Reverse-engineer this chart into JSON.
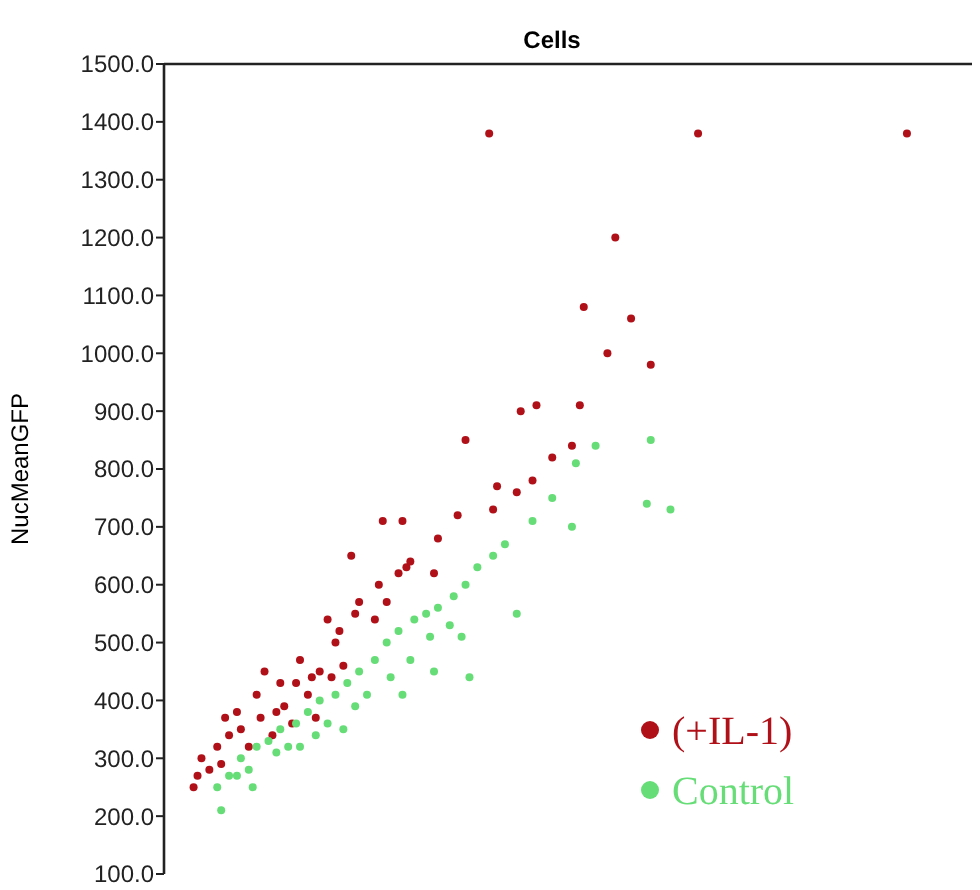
{
  "chart_data": {
    "type": "scatter",
    "title": "Cells",
    "ylabel": "NucMeanGFP",
    "ylim": [
      100,
      1500
    ],
    "categories": [
      null,
      null,
      null,
      null,
      null,
      null,
      null,
      null,
      null,
      null,
      null,
      null,
      null,
      null,
      null,
      null,
      null,
      null,
      null,
      null,
      null,
      null,
      null,
      null,
      null,
      null,
      null,
      null,
      null,
      null,
      null,
      null,
      null,
      null,
      null,
      null,
      null,
      null,
      null,
      null,
      null,
      null,
      null,
      null,
      null,
      null,
      null,
      null,
      null,
      null,
      null,
      null,
      null,
      null,
      null,
      null,
      null,
      null,
      null,
      null,
      null,
      null,
      null,
      null,
      null,
      null,
      null,
      null,
      null,
      null,
      null,
      null,
      null,
      null,
      null,
      null,
      null,
      null,
      null,
      null,
      null,
      null,
      null,
      null,
      null,
      null,
      null,
      null,
      null,
      null,
      null,
      null,
      null,
      null,
      null,
      null,
      null,
      null,
      null,
      null,
      null,
      null,
      null,
      null,
      null,
      null,
      null,
      null,
      null,
      null,
      null,
      null,
      null,
      null,
      null,
      null,
      null,
      null,
      null,
      null,
      null,
      null,
      null,
      null,
      null,
      null,
      null,
      null,
      null,
      null,
      null,
      null,
      null,
      null,
      null,
      null,
      null,
      null,
      null,
      null,
      null,
      null,
      null,
      null,
      null,
      null,
      null,
      null,
      null,
      null,
      null,
      null,
      null,
      null,
      null,
      null,
      null,
      null,
      null,
      null,
      null,
      null,
      null,
      null,
      null,
      null,
      null,
      null,
      null,
      null,
      null,
      null,
      null,
      null,
      null,
      null,
      null,
      null,
      null,
      null,
      null,
      null,
      null,
      null,
      null,
      null,
      null,
      null,
      null,
      null,
      null,
      null,
      null,
      null,
      null,
      null,
      null,
      null,
      null,
      null,
      null,
      null,
      null,
      null,
      null
    ],
    "yticks": [
      {
        "value": 100,
        "label": "100.0"
      },
      {
        "value": 200,
        "label": "200.0"
      },
      {
        "value": 300,
        "label": "300.0"
      },
      {
        "value": 400,
        "label": "400.0"
      },
      {
        "value": 500,
        "label": "500.0"
      },
      {
        "value": 600,
        "label": "600.0"
      },
      {
        "value": 700,
        "label": "700.0"
      },
      {
        "value": 800,
        "label": "800.0"
      },
      {
        "value": 900,
        "label": "900.0"
      },
      {
        "value": 1000,
        "label": "1000.0"
      },
      {
        "value": 1100,
        "label": "1100.0"
      },
      {
        "value": 1200,
        "label": "1200.0"
      },
      {
        "value": 1300,
        "label": "1300.0"
      },
      {
        "value": 1400,
        "label": "1400.0"
      },
      {
        "value": 1500,
        "label": "1500.0"
      }
    ],
    "grid": false,
    "legend": "bottom right",
    "marker": "circle",
    "series": [
      {
        "name": "(+IL-1)",
        "color": "#b01018",
        "values": [
          null,
          null,
          null,
          null,
          null,
          null,
          null,
          250,
          270,
          300,
          null,
          280,
          null,
          320,
          290,
          370,
          340,
          null,
          380,
          350,
          null,
          320,
          null,
          410,
          370,
          450,
          null,
          340,
          380,
          430,
          390,
          null,
          360,
          430,
          470,
          null,
          410,
          440,
          370,
          450,
          null,
          540,
          440,
          500,
          520,
          460,
          null,
          650,
          550,
          570,
          null,
          null,
          null,
          540,
          600,
          710,
          570,
          null,
          null,
          620,
          710,
          630,
          640,
          null,
          null,
          null,
          null,
          null,
          620,
          680,
          null,
          null,
          null,
          null,
          720,
          null,
          850,
          null,
          null,
          null,
          null,
          null,
          1380,
          730,
          770,
          null,
          null,
          null,
          null,
          760,
          900,
          null,
          null,
          780,
          910,
          null,
          null,
          null,
          820,
          null,
          null,
          null,
          null,
          840,
          null,
          910,
          1080,
          null,
          null,
          null,
          null,
          null,
          1000,
          null,
          1200,
          null,
          null,
          null,
          1060,
          null,
          null,
          null,
          null,
          980,
          null,
          null,
          null,
          null,
          null,
          null,
          null,
          null,
          null,
          null,
          null,
          1380,
          null,
          null,
          null,
          null,
          null,
          null,
          null,
          null,
          null,
          null,
          null,
          null,
          null,
          null,
          null,
          null,
          null,
          null,
          null,
          null,
          null,
          null,
          null,
          null,
          null,
          null,
          null,
          null,
          null,
          null,
          null,
          null,
          null,
          null,
          null,
          null,
          null,
          null,
          null,
          null,
          null,
          null,
          null,
          null,
          null,
          null,
          null,
          null,
          null,
          null,
          null,
          null,
          1380,
          null,
          null,
          null,
          null,
          null,
          null,
          null,
          null,
          null,
          null,
          null,
          null,
          null,
          null,
          null,
          null
        ]
      },
      {
        "name": "Control",
        "color": "#66dd77",
        "values": [
          null,
          null,
          null,
          null,
          null,
          null,
          null,
          null,
          null,
          null,
          null,
          null,
          null,
          250,
          210,
          null,
          270,
          null,
          270,
          300,
          null,
          280,
          250,
          320,
          null,
          null,
          330,
          null,
          310,
          350,
          null,
          320,
          null,
          360,
          320,
          null,
          380,
          null,
          340,
          400,
          null,
          360,
          null,
          410,
          null,
          350,
          430,
          null,
          390,
          450,
          null,
          410,
          null,
          470,
          null,
          null,
          500,
          440,
          null,
          520,
          410,
          null,
          470,
          540,
          null,
          null,
          550,
          510,
          450,
          560,
          null,
          null,
          530,
          580,
          null,
          510,
          600,
          440,
          null,
          630,
          null,
          null,
          null,
          650,
          null,
          null,
          670,
          null,
          null,
          550,
          null,
          null,
          null,
          710,
          null,
          null,
          null,
          null,
          750,
          null,
          null,
          null,
          null,
          700,
          810,
          null,
          null,
          null,
          null,
          840,
          null,
          null,
          null,
          null,
          null,
          null,
          null,
          null,
          null,
          null,
          null,
          null,
          740,
          850,
          null,
          null,
          null,
          null,
          730,
          null,
          null,
          null,
          null,
          null,
          null,
          null,
          null,
          null,
          null,
          null,
          null,
          null,
          null,
          null,
          null,
          null,
          null,
          null,
          null,
          null,
          null,
          null,
          null,
          null,
          null,
          null,
          null,
          null,
          null,
          null,
          null,
          null,
          null,
          null,
          null,
          null,
          null,
          null,
          null,
          null,
          null,
          null,
          null,
          null,
          null,
          null,
          null,
          null,
          null,
          null,
          null,
          null,
          null,
          null,
          null,
          null,
          null,
          null,
          null,
          null,
          null,
          null,
          null,
          null,
          null,
          null,
          null,
          null,
          null,
          null,
          null,
          null,
          null,
          null,
          null
        ]
      }
    ]
  }
}
